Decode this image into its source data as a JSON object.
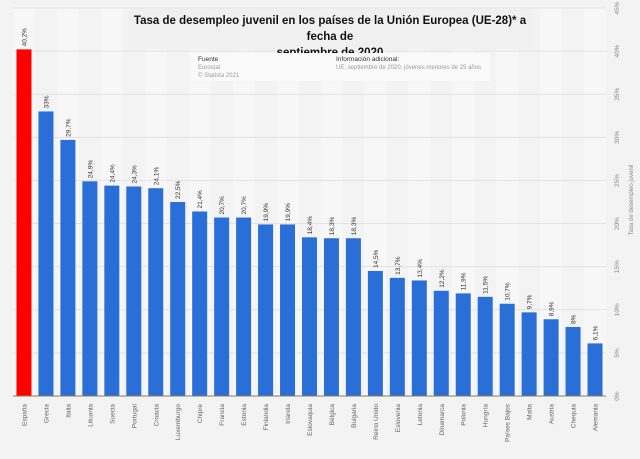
{
  "chart_data": {
    "type": "bar",
    "title": "Tasa de desempleo juvenil en los países de la Unión Europea (UE-28)* a fecha de septiembre de 2020",
    "xlabel": "",
    "ylabel": "Tasa de desempleo juvenil",
    "ylim": [
      0,
      45
    ],
    "yticks": [
      0,
      5,
      10,
      15,
      20,
      25,
      30,
      35,
      40,
      45
    ],
    "ytick_labels": [
      "0%",
      "5%",
      "10%",
      "15%",
      "20%",
      "25%",
      "30%",
      "35%",
      "40%",
      "45%"
    ],
    "y_axis_position": "right",
    "grid": true,
    "categories": [
      "España",
      "Grecia",
      "Italia",
      "Lituania",
      "Suecia",
      "Portugal",
      "Croacia",
      "Luxemburgo",
      "Chipre",
      "Francia",
      "Estonia",
      "Finlandia",
      "Irlanda",
      "Eslovaquia",
      "Bélgica",
      "Bulgaria",
      "Reino Unido",
      "Eslovenia",
      "Letonia",
      "Dinamarca",
      "Polonia",
      "Hungría",
      "Países Bajos",
      "Malta",
      "Austria",
      "Chequia",
      "Alemania"
    ],
    "values": [
      40.2,
      33,
      29.7,
      24.9,
      24.4,
      24.3,
      24.1,
      22.5,
      21.4,
      20.7,
      20.7,
      19.9,
      19.9,
      18.4,
      18.3,
      18.3,
      14.5,
      13.7,
      13.4,
      12.2,
      11.9,
      11.5,
      10.7,
      9.7,
      8.9,
      8,
      6.1
    ],
    "data_labels": [
      "40,2%",
      "33%",
      "29,7%",
      "24,9%",
      "24,4%",
      "24,3%",
      "24,1%",
      "22,5%",
      "21,4%",
      "20,7%",
      "20,7%",
      "19,9%",
      "19,9%",
      "18,4%",
      "18,3%",
      "18,3%",
      "14,5%",
      "13,7%",
      "13,4%",
      "12,2%",
      "11,9%",
      "11,5%",
      "10,7%",
      "9,7%",
      "8,9%",
      "8%",
      "6,1%"
    ],
    "highlight_index": 0,
    "colors": {
      "bar": "#2a6fd8",
      "highlight": "#ff0000",
      "grid": "#e2e2e2",
      "axis": "#8a7a5a"
    }
  },
  "title": {
    "line1": "Tasa de desempleo juvenil en los países de la Unión Europea (UE-28)* a fecha de",
    "line2": "septiembre de 2020"
  },
  "info": {
    "source_heading": "Fuente",
    "source_lines": [
      "Eurostat",
      "© Statista 2021"
    ],
    "additional_heading": "Información adicional:",
    "additional_text": "UE; septiembre de 2020; jóvenes menores de 25 años"
  }
}
